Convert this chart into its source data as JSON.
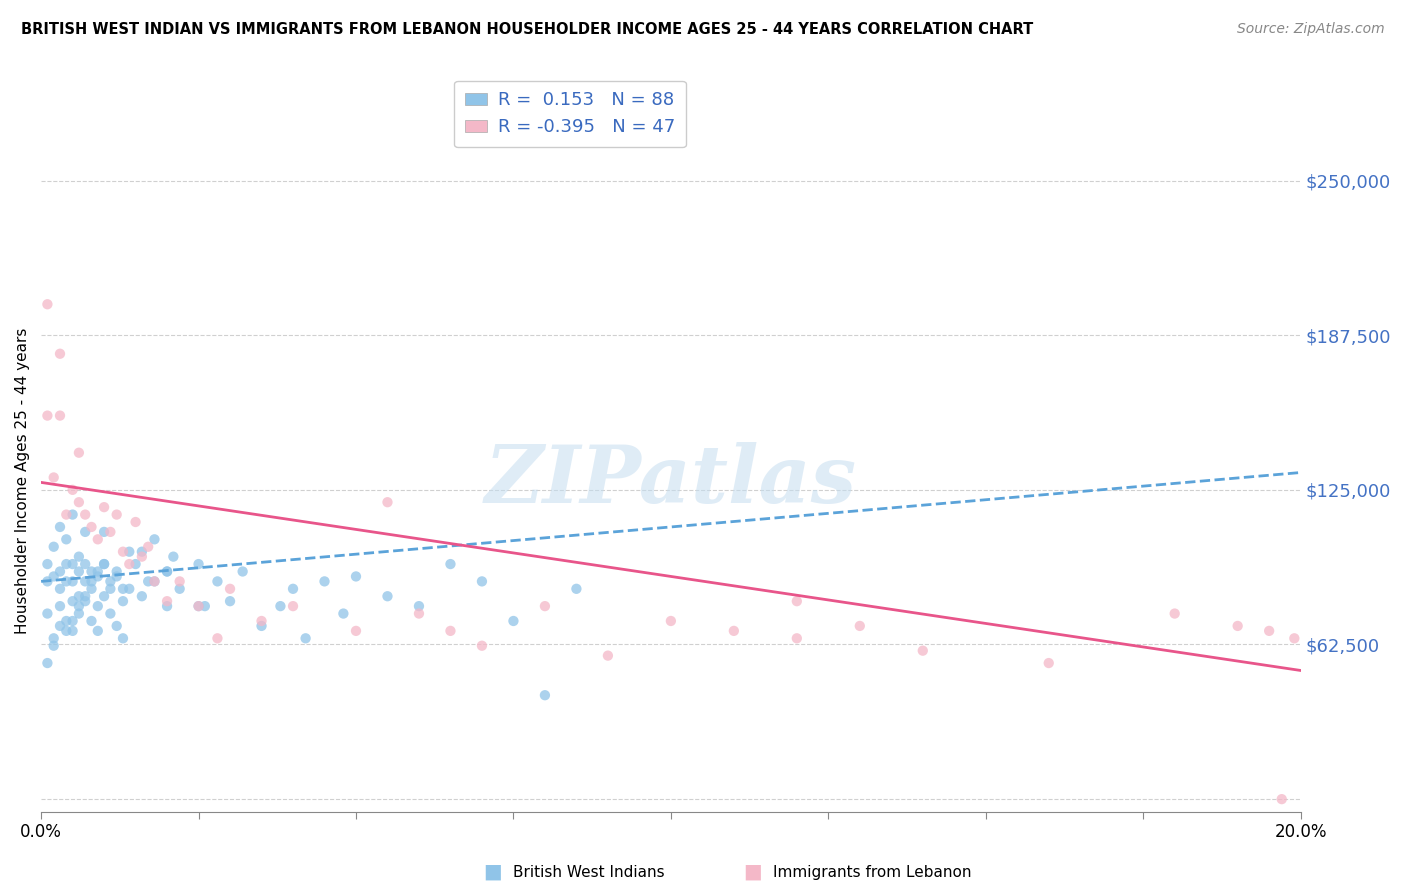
{
  "title": "BRITISH WEST INDIAN VS IMMIGRANTS FROM LEBANON HOUSEHOLDER INCOME AGES 25 - 44 YEARS CORRELATION CHART",
  "source": "Source: ZipAtlas.com",
  "ylabel": "Householder Income Ages 25 - 44 years",
  "y_ticks": [
    0,
    62500,
    125000,
    187500,
    250000
  ],
  "y_tick_labels": [
    "",
    "$62,500",
    "$125,000",
    "$187,500",
    "$250,000"
  ],
  "xlim": [
    0.0,
    0.2
  ],
  "ylim": [
    -5000,
    262000
  ],
  "watermark_text": "ZIPatlas",
  "group1_color": "#90c4e8",
  "group2_color": "#f4b8c8",
  "group1_label": "British West Indians",
  "group2_label": "Immigrants from Lebanon",
  "trend1_color": "#5ba3d9",
  "trend2_color": "#e8558a",
  "background_color": "#ffffff",
  "grid_color": "#d0d0d0",
  "ytick_color": "#4472c4",
  "bwi_x": [
    0.001,
    0.001,
    0.001,
    0.002,
    0.002,
    0.002,
    0.003,
    0.003,
    0.003,
    0.003,
    0.004,
    0.004,
    0.004,
    0.004,
    0.005,
    0.005,
    0.005,
    0.005,
    0.005,
    0.006,
    0.006,
    0.006,
    0.006,
    0.007,
    0.007,
    0.007,
    0.007,
    0.008,
    0.008,
    0.008,
    0.009,
    0.009,
    0.009,
    0.01,
    0.01,
    0.01,
    0.011,
    0.011,
    0.012,
    0.012,
    0.013,
    0.013,
    0.014,
    0.015,
    0.016,
    0.017,
    0.018,
    0.02,
    0.02,
    0.021,
    0.022,
    0.025,
    0.026,
    0.028,
    0.03,
    0.032,
    0.035,
    0.038,
    0.04,
    0.042,
    0.045,
    0.048,
    0.05,
    0.055,
    0.06,
    0.065,
    0.07,
    0.075,
    0.08,
    0.085,
    0.001,
    0.002,
    0.003,
    0.004,
    0.005,
    0.006,
    0.007,
    0.008,
    0.009,
    0.01,
    0.011,
    0.012,
    0.013,
    0.014,
    0.016,
    0.018,
    0.02,
    0.025
  ],
  "bwi_y": [
    95000,
    88000,
    75000,
    102000,
    90000,
    65000,
    85000,
    110000,
    78000,
    92000,
    88000,
    95000,
    72000,
    105000,
    80000,
    88000,
    95000,
    68000,
    115000,
    75000,
    92000,
    82000,
    98000,
    80000,
    88000,
    95000,
    108000,
    72000,
    85000,
    92000,
    68000,
    78000,
    90000,
    82000,
    95000,
    108000,
    75000,
    88000,
    70000,
    92000,
    65000,
    80000,
    85000,
    95000,
    100000,
    88000,
    105000,
    92000,
    78000,
    98000,
    85000,
    95000,
    78000,
    88000,
    80000,
    92000,
    70000,
    78000,
    85000,
    65000,
    88000,
    75000,
    90000,
    82000,
    78000,
    95000,
    88000,
    72000,
    42000,
    85000,
    55000,
    62000,
    70000,
    68000,
    72000,
    78000,
    82000,
    88000,
    92000,
    95000,
    85000,
    90000,
    85000,
    100000,
    82000,
    88000,
    92000,
    78000
  ],
  "leb_x": [
    0.001,
    0.001,
    0.002,
    0.003,
    0.003,
    0.004,
    0.005,
    0.006,
    0.006,
    0.007,
    0.008,
    0.009,
    0.01,
    0.011,
    0.012,
    0.013,
    0.014,
    0.015,
    0.016,
    0.017,
    0.018,
    0.02,
    0.022,
    0.025,
    0.028,
    0.03,
    0.035,
    0.04,
    0.05,
    0.055,
    0.06,
    0.065,
    0.07,
    0.08,
    0.09,
    0.1,
    0.11,
    0.12,
    0.13,
    0.14,
    0.16,
    0.18,
    0.19,
    0.195,
    0.197,
    0.199,
    0.12
  ],
  "leb_y": [
    155000,
    200000,
    130000,
    180000,
    155000,
    115000,
    125000,
    120000,
    140000,
    115000,
    110000,
    105000,
    118000,
    108000,
    115000,
    100000,
    95000,
    112000,
    98000,
    102000,
    88000,
    80000,
    88000,
    78000,
    65000,
    85000,
    72000,
    78000,
    68000,
    120000,
    75000,
    68000,
    62000,
    78000,
    58000,
    72000,
    68000,
    65000,
    70000,
    60000,
    55000,
    75000,
    70000,
    68000,
    0,
    65000,
    80000
  ],
  "trend1_x0": 0.0,
  "trend1_y0": 88000,
  "trend1_x1": 0.2,
  "trend1_y1": 132000,
  "trend2_x0": 0.0,
  "trend2_y0": 128000,
  "trend2_x1": 0.2,
  "trend2_y1": 52000
}
